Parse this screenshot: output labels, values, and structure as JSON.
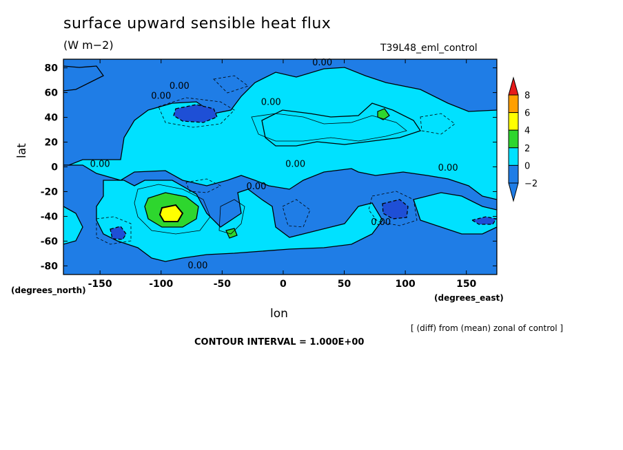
{
  "title": "surface upward sensible heat flux",
  "units": "(W m−2)",
  "run_label": "T39L48_eml_control",
  "note": "[ (diff) from (mean) zonal of control ]",
  "contour_interval": "CONTOUR INTERVAL = 1.000E+00",
  "colors": {
    "c_neg2": "#1f7de6",
    "c_0": "#00e1ff",
    "c_2": "#2ed62e",
    "c_4": "#ffff00",
    "c_6": "#ff9f00",
    "c_8": "#e61a1a",
    "c_low": "#1e4fd6"
  },
  "chart_data": {
    "type": "heatmap",
    "title": "surface upward sensible heat flux",
    "units": "(W m−2)",
    "xlabel": "lon",
    "ylabel": "lat",
    "x_units": "(degrees_east)",
    "y_units": "(degrees_north)",
    "xlim": [
      -180,
      175
    ],
    "ylim": [
      -87,
      87
    ],
    "x_ticks": [
      "-150",
      "-100",
      "-50",
      "0",
      "50",
      "100",
      "150"
    ],
    "y_ticks": [
      "80",
      "60",
      "40",
      "20",
      "0",
      "-20",
      "-40",
      "-60",
      "-80"
    ],
    "x_tick_values": [
      -150,
      -100,
      -50,
      0,
      50,
      100,
      150
    ],
    "y_tick_values": [
      80,
      60,
      40,
      20,
      0,
      -20,
      -40,
      -60,
      -80
    ],
    "colorbar_levels": [
      "8",
      "6",
      "4",
      "2",
      "0",
      "−2"
    ],
    "contour_labels": [
      "0.00",
      "0.00",
      "0.00",
      "0.00",
      "0.00",
      "0.00",
      "0.00",
      "0.00",
      "0.00",
      "0.00"
    ],
    "contour_interval": 1.0,
    "features": [
      {
        "name": "positive max",
        "lon": -95,
        "lat": -38,
        "value": 5.5
      },
      {
        "name": "positive",
        "lon": 82,
        "lat": 42,
        "value": 2.5
      },
      {
        "name": "positive",
        "lon": -40,
        "lat": -55,
        "value": 2.5
      },
      {
        "name": "negative min",
        "lon": -70,
        "lat": 42,
        "value": -3
      },
      {
        "name": "negative min",
        "lon": 92,
        "lat": -35,
        "value": -3
      },
      {
        "name": "negative min",
        "lon": -133,
        "lat": -53,
        "value": -3
      },
      {
        "name": "negative min",
        "lon": 165,
        "lat": -45,
        "value": -3
      }
    ]
  }
}
